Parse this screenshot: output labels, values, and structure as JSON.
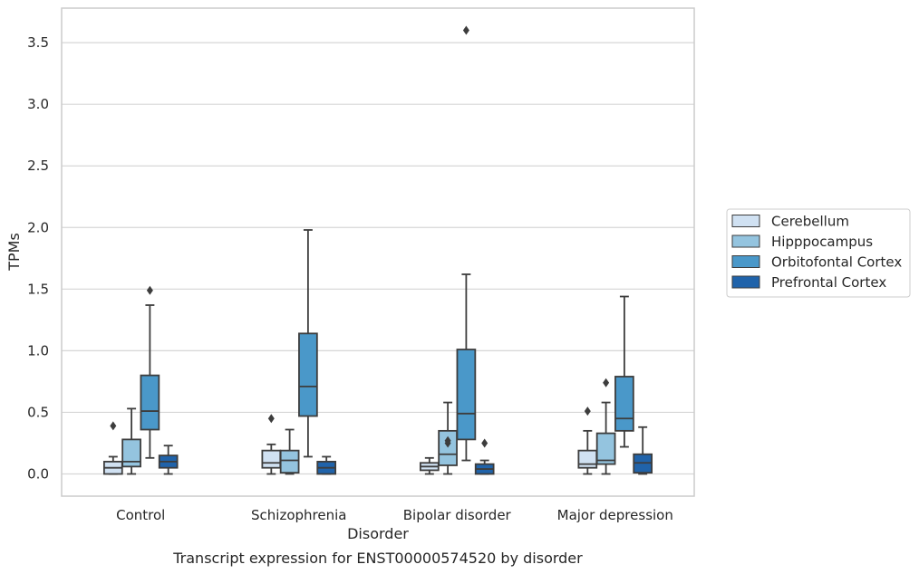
{
  "chart_data": {
    "type": "box",
    "title": "",
    "caption": "Transcript expression for ENST00000574520 by disorder",
    "xlabel": "Disorder",
    "ylabel": "TPMs",
    "ylim": [
      -0.18,
      3.78
    ],
    "yticks": [
      0.0,
      0.5,
      1.0,
      1.5,
      2.0,
      2.5,
      3.0,
      3.5
    ],
    "ytick_labels": [
      "0.0",
      "0.5",
      "1.0",
      "1.5",
      "2.0",
      "2.5",
      "3.0",
      "3.5"
    ],
    "grid": "horizontal",
    "legend_placement": "right",
    "categories": [
      "Control",
      "Schizophrenia",
      "Bipolar disorder",
      "Major depression"
    ],
    "series": [
      {
        "name": "Cerebellum",
        "color": "#d0e1f2",
        "boxes": [
          {
            "whisker_low": 0.0,
            "q1": 0.0,
            "median": 0.05,
            "q3": 0.1,
            "whisker_high": 0.14,
            "outliers": [
              0.39
            ]
          },
          {
            "whisker_low": 0.0,
            "q1": 0.05,
            "median": 0.09,
            "q3": 0.19,
            "whisker_high": 0.24,
            "outliers": [
              0.45
            ]
          },
          {
            "whisker_low": 0.0,
            "q1": 0.03,
            "median": 0.06,
            "q3": 0.09,
            "whisker_high": 0.13,
            "outliers": []
          },
          {
            "whisker_low": 0.0,
            "q1": 0.05,
            "median": 0.08,
            "q3": 0.19,
            "whisker_high": 0.35,
            "outliers": [
              0.51
            ]
          }
        ]
      },
      {
        "name": "Hipppocampus",
        "color": "#94c4df",
        "boxes": [
          {
            "whisker_low": 0.0,
            "q1": 0.06,
            "median": 0.1,
            "q3": 0.28,
            "whisker_high": 0.53,
            "outliers": []
          },
          {
            "whisker_low": 0.0,
            "q1": 0.01,
            "median": 0.11,
            "q3": 0.19,
            "whisker_high": 0.36,
            "outliers": []
          },
          {
            "whisker_low": 0.0,
            "q1": 0.07,
            "median": 0.16,
            "q3": 0.35,
            "whisker_high": 0.58,
            "outliers": [
              0.25,
              0.27
            ]
          },
          {
            "whisker_low": 0.0,
            "q1": 0.08,
            "median": 0.11,
            "q3": 0.33,
            "whisker_high": 0.58,
            "outliers": [
              0.74
            ]
          }
        ]
      },
      {
        "name": "Orbitofontal Cortex",
        "color": "#4a98c9",
        "boxes": [
          {
            "whisker_low": 0.13,
            "q1": 0.36,
            "median": 0.51,
            "q3": 0.8,
            "whisker_high": 1.37,
            "outliers": [
              1.49
            ]
          },
          {
            "whisker_low": 0.14,
            "q1": 0.47,
            "median": 0.71,
            "q3": 1.14,
            "whisker_high": 1.98,
            "outliers": []
          },
          {
            "whisker_low": 0.11,
            "q1": 0.28,
            "median": 0.49,
            "q3": 1.01,
            "whisker_high": 1.62,
            "outliers": [
              3.6
            ]
          },
          {
            "whisker_low": 0.22,
            "q1": 0.35,
            "median": 0.45,
            "q3": 0.79,
            "whisker_high": 1.44,
            "outliers": []
          }
        ]
      },
      {
        "name": "Prefrontal Cortex",
        "color": "#2063aa",
        "boxes": [
          {
            "whisker_low": 0.0,
            "q1": 0.05,
            "median": 0.1,
            "q3": 0.15,
            "whisker_high": 0.23,
            "outliers": []
          },
          {
            "whisker_low": 0.0,
            "q1": 0.0,
            "median": 0.05,
            "q3": 0.1,
            "whisker_high": 0.14,
            "outliers": []
          },
          {
            "whisker_low": 0.0,
            "q1": 0.0,
            "median": 0.04,
            "q3": 0.08,
            "whisker_high": 0.11,
            "outliers": [
              0.25
            ]
          },
          {
            "whisker_low": 0.0,
            "q1": 0.01,
            "median": 0.09,
            "q3": 0.16,
            "whisker_high": 0.38,
            "outliers": []
          }
        ]
      }
    ]
  }
}
